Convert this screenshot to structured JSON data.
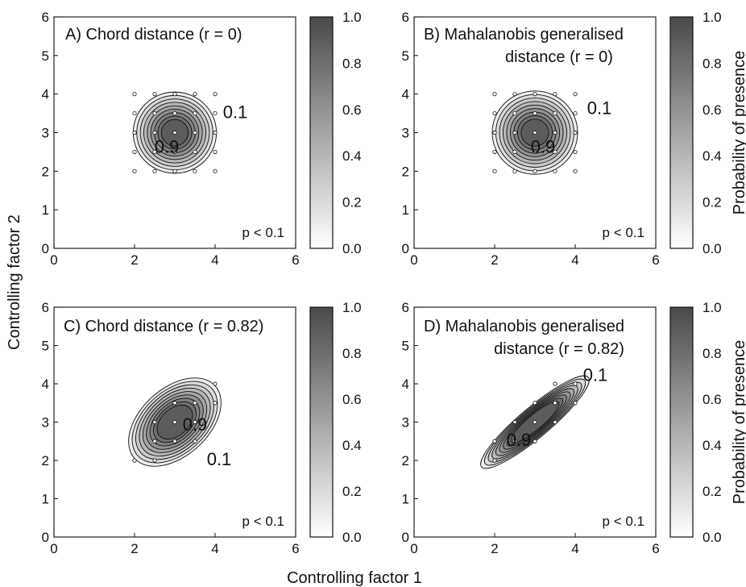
{
  "chart_data": [
    {
      "panel": "A",
      "type": "contour",
      "title_lines": [
        "A)  Chord distance (r = 0)"
      ],
      "annotation": "p < 0.1",
      "correlation": 0,
      "center": [
        3,
        3
      ],
      "contour_labels": [
        {
          "text": "0.1",
          "x": 4.5,
          "y": 3.5
        },
        {
          "text": "0.9",
          "x": 2.8,
          "y": 2.6
        }
      ],
      "sample_points": [
        [
          2,
          2
        ],
        [
          2.5,
          2
        ],
        [
          3,
          2
        ],
        [
          3.5,
          2
        ],
        [
          4,
          2
        ],
        [
          2,
          2.5
        ],
        [
          2.5,
          2.5
        ],
        [
          3,
          2.5
        ],
        [
          3.5,
          2.5
        ],
        [
          4,
          2.5
        ],
        [
          2,
          3
        ],
        [
          2.5,
          3
        ],
        [
          3,
          3
        ],
        [
          3.5,
          3
        ],
        [
          4,
          3
        ],
        [
          2,
          3.5
        ],
        [
          2.5,
          3.5
        ],
        [
          3,
          3.5
        ],
        [
          3.5,
          3.5
        ],
        [
          4,
          3.5
        ],
        [
          2,
          4
        ],
        [
          2.5,
          4
        ],
        [
          3,
          4
        ],
        [
          3.5,
          4
        ],
        [
          4,
          4
        ]
      ]
    },
    {
      "panel": "B",
      "type": "contour",
      "title_lines": [
        "B)  Mahalanobis generalised",
        "distance (r = 0)"
      ],
      "annotation": "p < 0.1",
      "correlation": 0,
      "center": [
        3,
        3
      ],
      "contour_labels": [
        {
          "text": "0.1",
          "x": 4.6,
          "y": 3.6
        },
        {
          "text": "0.9",
          "x": 3.2,
          "y": 2.6
        }
      ],
      "sample_points": [
        [
          2,
          2
        ],
        [
          2.5,
          2
        ],
        [
          3,
          2
        ],
        [
          3.5,
          2
        ],
        [
          4,
          2
        ],
        [
          2,
          2.5
        ],
        [
          2.5,
          2.5
        ],
        [
          3,
          2.5
        ],
        [
          3.5,
          2.5
        ],
        [
          4,
          2.5
        ],
        [
          2,
          3
        ],
        [
          2.5,
          3
        ],
        [
          3,
          3
        ],
        [
          3.5,
          3
        ],
        [
          4,
          3
        ],
        [
          2,
          3.5
        ],
        [
          2.5,
          3.5
        ],
        [
          3,
          3.5
        ],
        [
          3.5,
          3.5
        ],
        [
          4,
          3.5
        ],
        [
          2,
          4
        ],
        [
          2.5,
          4
        ],
        [
          3,
          4
        ],
        [
          3.5,
          4
        ],
        [
          4,
          4
        ]
      ]
    },
    {
      "panel": "C",
      "type": "contour",
      "title_lines": [
        "C)  Chord distance (r = 0.82)"
      ],
      "annotation": "p < 0.1",
      "correlation": 0.82,
      "center": [
        3,
        3
      ],
      "contour_labels": [
        {
          "text": "0.9",
          "x": 3.5,
          "y": 2.9
        },
        {
          "text": "0.1",
          "x": 4.1,
          "y": 2.0
        }
      ],
      "sample_points": [
        [
          2,
          2
        ],
        [
          2.5,
          2
        ],
        [
          2.5,
          2.5
        ],
        [
          3,
          2.5
        ],
        [
          3,
          3
        ],
        [
          3.5,
          3
        ],
        [
          3,
          3.5
        ],
        [
          3.5,
          3.5
        ],
        [
          4,
          4
        ],
        [
          2.5,
          3
        ],
        [
          3.5,
          2.5
        ],
        [
          4,
          3.5
        ]
      ]
    },
    {
      "panel": "D",
      "type": "contour",
      "title_lines": [
        "D)  Mahalanobis generalised",
        "distance (r = 0.82)"
      ],
      "annotation": "p < 0.1",
      "correlation": 0.82,
      "center": [
        3,
        3
      ],
      "contour_labels": [
        {
          "text": "0.1",
          "x": 4.5,
          "y": 4.2
        },
        {
          "text": "0.9",
          "x": 2.6,
          "y": 2.5
        }
      ],
      "sample_points": [
        [
          2,
          2
        ],
        [
          2.5,
          2.5
        ],
        [
          3,
          2.5
        ],
        [
          2.5,
          3
        ],
        [
          3,
          3
        ],
        [
          3.5,
          3
        ],
        [
          3,
          3.5
        ],
        [
          3.5,
          3.5
        ],
        [
          4,
          4
        ],
        [
          2,
          2.5
        ],
        [
          3.5,
          4
        ],
        [
          4,
          3.5
        ]
      ]
    }
  ],
  "axes": {
    "xlim": [
      0,
      6
    ],
    "ylim": [
      0,
      6
    ],
    "x_ticks": [
      "0",
      "2",
      "4",
      "6"
    ],
    "y_ticks": [
      "0",
      "1",
      "2",
      "3",
      "4",
      "5",
      "6"
    ],
    "xlabel": "Controlling factor 1",
    "ylabel": "Controlling factor 2"
  },
  "colorbar": {
    "ticks": [
      "0.0",
      "0.2",
      "0.4",
      "0.6",
      "0.8",
      "1.0"
    ],
    "label": "Probability of presence",
    "levels": [
      0.1,
      0.2,
      0.3,
      0.4,
      0.5,
      0.6,
      0.7,
      0.8,
      0.9
    ],
    "color_low": "#ffffff",
    "color_high": "#4a4a4a"
  }
}
